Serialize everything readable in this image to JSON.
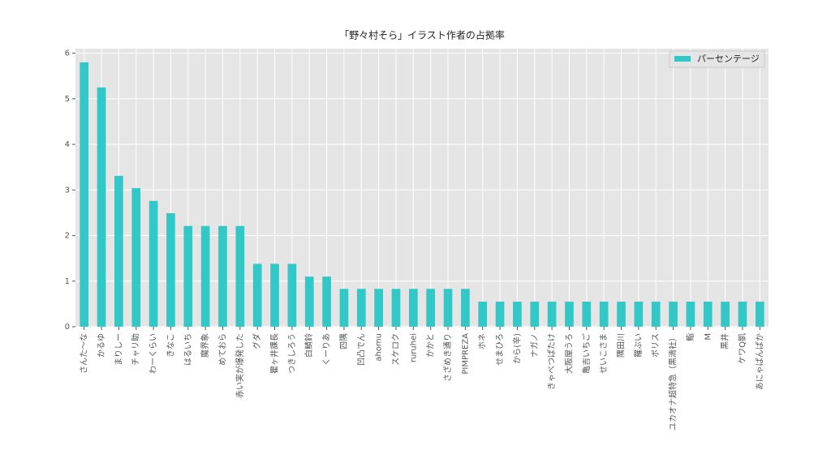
{
  "chart_data": {
    "type": "bar",
    "title": "「野々村そら」イラスト作者の占拠率",
    "categories": [
      "さんた〜な",
      "かるゆ",
      "まりしー",
      "チャリ助",
      "わーくらい",
      "きなこ",
      "はるいち",
      "魔界象",
      "めておら",
      "赤い実が爆発した",
      "グダ",
      "瞿ヶ井課長",
      "つきしろう",
      "白鯖鈴",
      "くーりあ",
      "四隅",
      "凹凸でん",
      "ahomu",
      "スケロク",
      "ruruhei",
      "かかと",
      "さざめき通り",
      "PIMPREZA",
      "ホネ",
      "せまひろ",
      "から(辛)",
      "ナガノ",
      "きゃべつぱたけ",
      "大阪屋うろ",
      "亀吉いちご",
      "せいこさま",
      "隅田川",
      "羅ぶい",
      "ボリス",
      "ユカオナ超特急（黒清社）",
      "鮨",
      "M",
      "黒井",
      "ケワQ凱",
      "あにゃぱんぱか"
    ],
    "series": [
      {
        "name": "パーセンテージ",
        "color": "#33c8c8",
        "values": [
          5.8,
          5.25,
          3.31,
          3.04,
          2.76,
          2.49,
          2.21,
          2.21,
          2.21,
          2.21,
          1.38,
          1.38,
          1.38,
          1.1,
          1.1,
          0.83,
          0.83,
          0.83,
          0.83,
          0.83,
          0.83,
          0.83,
          0.83,
          0.55,
          0.55,
          0.55,
          0.55,
          0.55,
          0.55,
          0.55,
          0.55,
          0.55,
          0.55,
          0.55,
          0.55,
          0.55,
          0.55,
          0.55,
          0.55,
          0.55
        ]
      }
    ],
    "ylim": [
      0,
      6.1
    ],
    "yticks": [
      0,
      1,
      2,
      3,
      4,
      5,
      6
    ],
    "grid": true,
    "legend": "upper right"
  }
}
